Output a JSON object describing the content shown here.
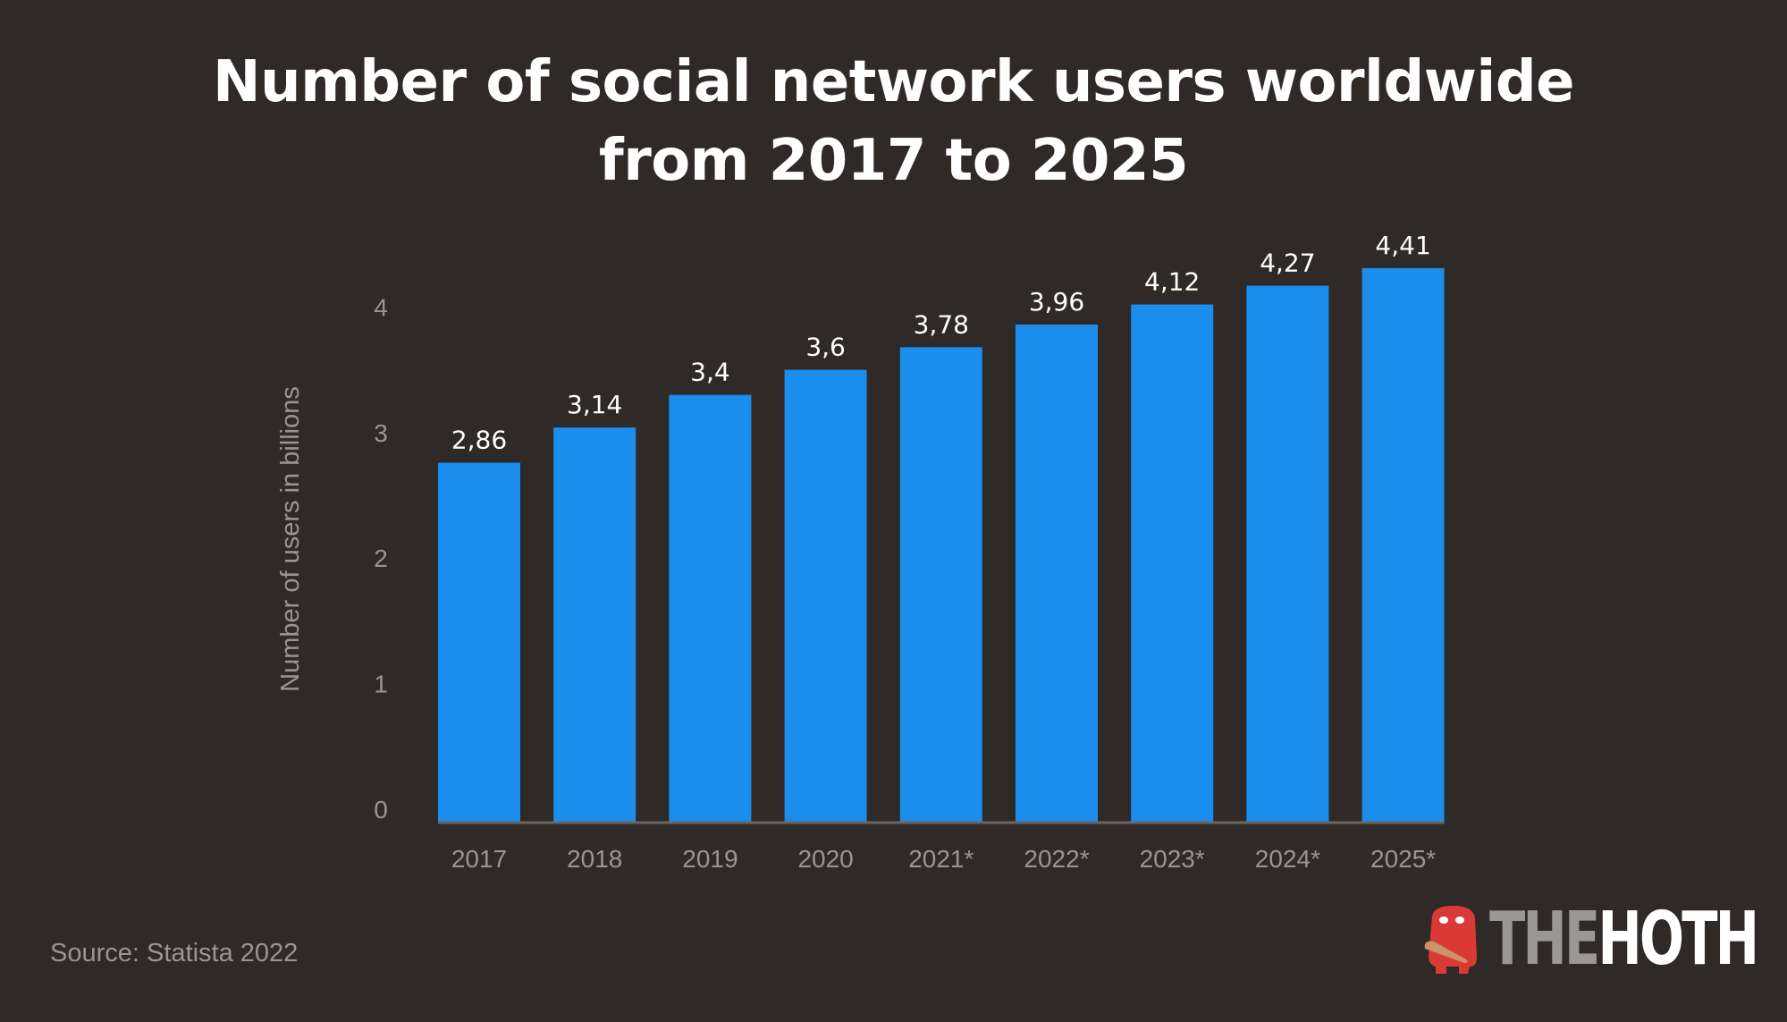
{
  "chart_data": {
    "type": "bar",
    "title": "Number of social network users worldwide from 2017 to 2025",
    "title_lines": [
      "Number of social network users worldwide",
      "from 2017 to 2025"
    ],
    "categories": [
      "2017",
      "2018",
      "2019",
      "2020",
      "2021*",
      "2022*",
      "2023*",
      "2024*",
      "2025*"
    ],
    "values": [
      2.86,
      3.14,
      3.4,
      3.6,
      3.78,
      3.96,
      4.12,
      4.27,
      4.41
    ],
    "data_labels": [
      "2,86",
      "3,14",
      "3,4",
      "3,6",
      "3,78",
      "3,96",
      "4,12",
      "4,27",
      "4,41"
    ],
    "xlabel": "",
    "ylabel": "Number of users in billions",
    "ylim": [
      0,
      4.5
    ],
    "yticks": [
      "0",
      "1",
      "2",
      "3",
      "4"
    ],
    "grid": false,
    "legend": "none",
    "colors": {
      "bar": "#1b8ded",
      "background": "#2f2a28",
      "axis_text": "#9a9590"
    }
  },
  "footer": {
    "source": "Source: Statista 2022",
    "logo": {
      "part1": "THE",
      "part2": "HOTH"
    }
  }
}
